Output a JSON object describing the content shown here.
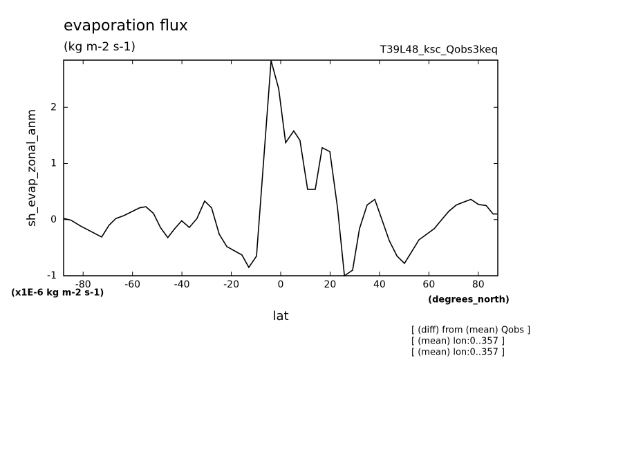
{
  "chart_data": {
    "type": "line",
    "title": "evaporation flux",
    "subtitle": "(kg m-2 s-1)",
    "run_name": "T39L48_ksc_Qobs3keq",
    "y_label": "sh_evap_zonal_anm",
    "x_label": "lat",
    "x_units": "(degrees_north)",
    "y_units": "(x1E-6 kg m-2 s-1)",
    "notes": [
      "[ (diff) from (mean) Qobs ]",
      "[ (mean) lon:0..357 ]",
      "[ (mean) lon:0..357 ]"
    ],
    "x": [
      -87.7,
      -84.9,
      -81.2,
      -72.5,
      -69.5,
      -66.7,
      -63.6,
      -57.1,
      -54.6,
      -51.5,
      -48.7,
      -45.7,
      -42.9,
      -40.1,
      -37.0,
      -33.9,
      -30.8,
      -28.0,
      -24.9,
      -21.8,
      -15.7,
      -12.9,
      -9.8,
      -3.9,
      -0.8,
      2.0,
      5.3,
      7.8,
      10.9,
      14.0,
      16.8,
      19.9,
      23.0,
      25.8,
      29.1,
      31.9,
      35.0,
      38.1,
      40.9,
      44.0,
      47.1,
      50.1,
      52.9,
      56.0,
      62.2,
      65.0,
      68.1,
      71.1,
      73.9,
      77.0,
      80.1,
      83.2,
      86.0,
      87.7
    ],
    "values": [
      0.02,
      -0.01,
      -0.11,
      -0.31,
      -0.1,
      0.02,
      0.07,
      0.21,
      0.23,
      0.11,
      -0.14,
      -0.32,
      -0.16,
      -0.02,
      -0.14,
      0.02,
      0.33,
      0.21,
      -0.26,
      -0.48,
      -0.63,
      -0.85,
      -0.65,
      2.83,
      2.33,
      1.37,
      1.58,
      1.41,
      0.54,
      0.54,
      1.28,
      1.21,
      0.21,
      -1.0,
      -0.9,
      -0.16,
      0.26,
      0.36,
      0.01,
      -0.38,
      -0.65,
      -0.78,
      -0.58,
      -0.36,
      -0.16,
      -0.01,
      0.15,
      0.26,
      0.31,
      0.36,
      0.27,
      0.25,
      0.1,
      0.1
    ],
    "color": "#000000",
    "xlim": [
      -87.9,
      87.9
    ],
    "xticks": [
      -80,
      -60,
      -40,
      -20,
      0,
      20,
      40,
      60,
      80
    ],
    "ylim": [
      -1,
      2.84
    ],
    "yticks": [
      -1,
      0,
      1,
      2
    ]
  }
}
